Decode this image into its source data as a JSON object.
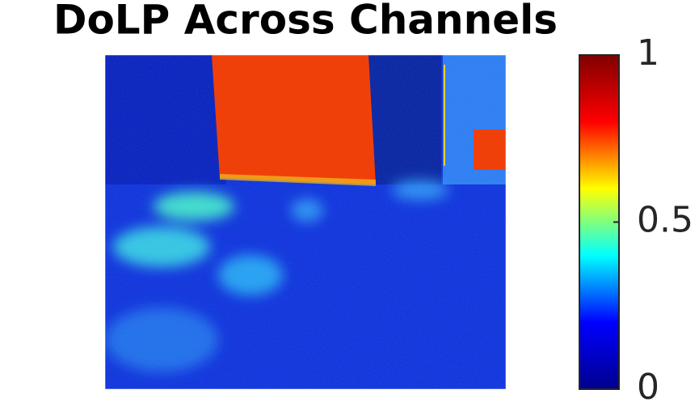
{
  "chart_data": {
    "type": "image",
    "title": "DoLP Across Channels",
    "colorbar": {
      "clim": [
        0,
        1
      ],
      "ticks": [
        0,
        0.5,
        1
      ],
      "colormap": [
        "#00008f",
        "#0000ff",
        "#00ffff",
        "#ffff00",
        "#ff0000",
        "#800000"
      ]
    }
  }
}
